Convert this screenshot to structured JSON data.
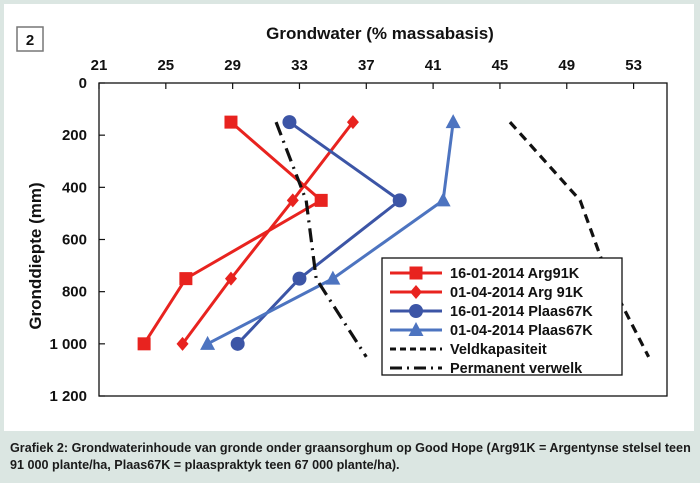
{
  "figure_number": "2",
  "caption": "Grafiek 2: Grondwaterinhoude van gronde onder graansorghum op Good Hope (Arg91K = Argentynse stelsel teen 91 000 plante/ha, Plaas67K = plaaspraktyk teen 67 000 plante/ha).",
  "chart_data": {
    "type": "line",
    "xlabel": "Grondwater (% massabasis)",
    "ylabel": "Gronddiepte (mm)",
    "xlim": [
      21,
      55
    ],
    "ylim": [
      0,
      1200
    ],
    "x_ticks": [
      21,
      25,
      29,
      33,
      37,
      41,
      45,
      49,
      53
    ],
    "y_ticks": [
      0,
      200,
      400,
      600,
      800,
      1000,
      1200
    ],
    "y_tick_labels": [
      "0",
      "200",
      "400",
      "600",
      "800",
      "1 000",
      "1 200"
    ],
    "x_axis_position": "top",
    "y_axis_inverted": true,
    "grid": false,
    "legend_position": "bottom-right",
    "series": [
      {
        "name": "16-01-2014 Arg91K",
        "color": "#e8231f",
        "marker": "square",
        "dash": "solid",
        "points": [
          {
            "x": 28.9,
            "y": 150
          },
          {
            "x": 34.3,
            "y": 450
          },
          {
            "x": 26.2,
            "y": 750
          },
          {
            "x": 23.7,
            "y": 1000
          }
        ]
      },
      {
        "name": "01-04-2014 Arg 91K",
        "color": "#e8231f",
        "marker": "diamond",
        "dash": "solid",
        "points": [
          {
            "x": 36.2,
            "y": 150
          },
          {
            "x": 32.6,
            "y": 450
          },
          {
            "x": 28.9,
            "y": 750
          },
          {
            "x": 26.0,
            "y": 1000
          }
        ]
      },
      {
        "name": "16-01-2014 Plaas67K",
        "color": "#3c55a6",
        "marker": "circle",
        "dash": "solid",
        "points": [
          {
            "x": 32.4,
            "y": 150
          },
          {
            "x": 39.0,
            "y": 450
          },
          {
            "x": 33.0,
            "y": 750
          },
          {
            "x": 29.3,
            "y": 1000
          }
        ]
      },
      {
        "name": "01-04-2014 Plaas67K",
        "color": "#4d74c0",
        "marker": "triangle",
        "dash": "solid",
        "points": [
          {
            "x": 42.2,
            "y": 150
          },
          {
            "x": 41.6,
            "y": 450
          },
          {
            "x": 35.0,
            "y": 750
          },
          {
            "x": 27.5,
            "y": 1000
          }
        ]
      },
      {
        "name": "Veldkapasiteit",
        "color": "#111111",
        "marker": "none",
        "dash": "dash",
        "points": [
          {
            "x": 45.6,
            "y": 150
          },
          {
            "x": 49.8,
            "y": 450
          },
          {
            "x": 51.5,
            "y": 750
          },
          {
            "x": 53.9,
            "y": 1050
          }
        ]
      },
      {
        "name": "Permanent verwelk",
        "color": "#111111",
        "marker": "none",
        "dash": "dashdot",
        "points": [
          {
            "x": 31.6,
            "y": 150
          },
          {
            "x": 33.4,
            "y": 450
          },
          {
            "x": 34.0,
            "y": 750
          },
          {
            "x": 37.0,
            "y": 1050
          }
        ]
      }
    ]
  }
}
